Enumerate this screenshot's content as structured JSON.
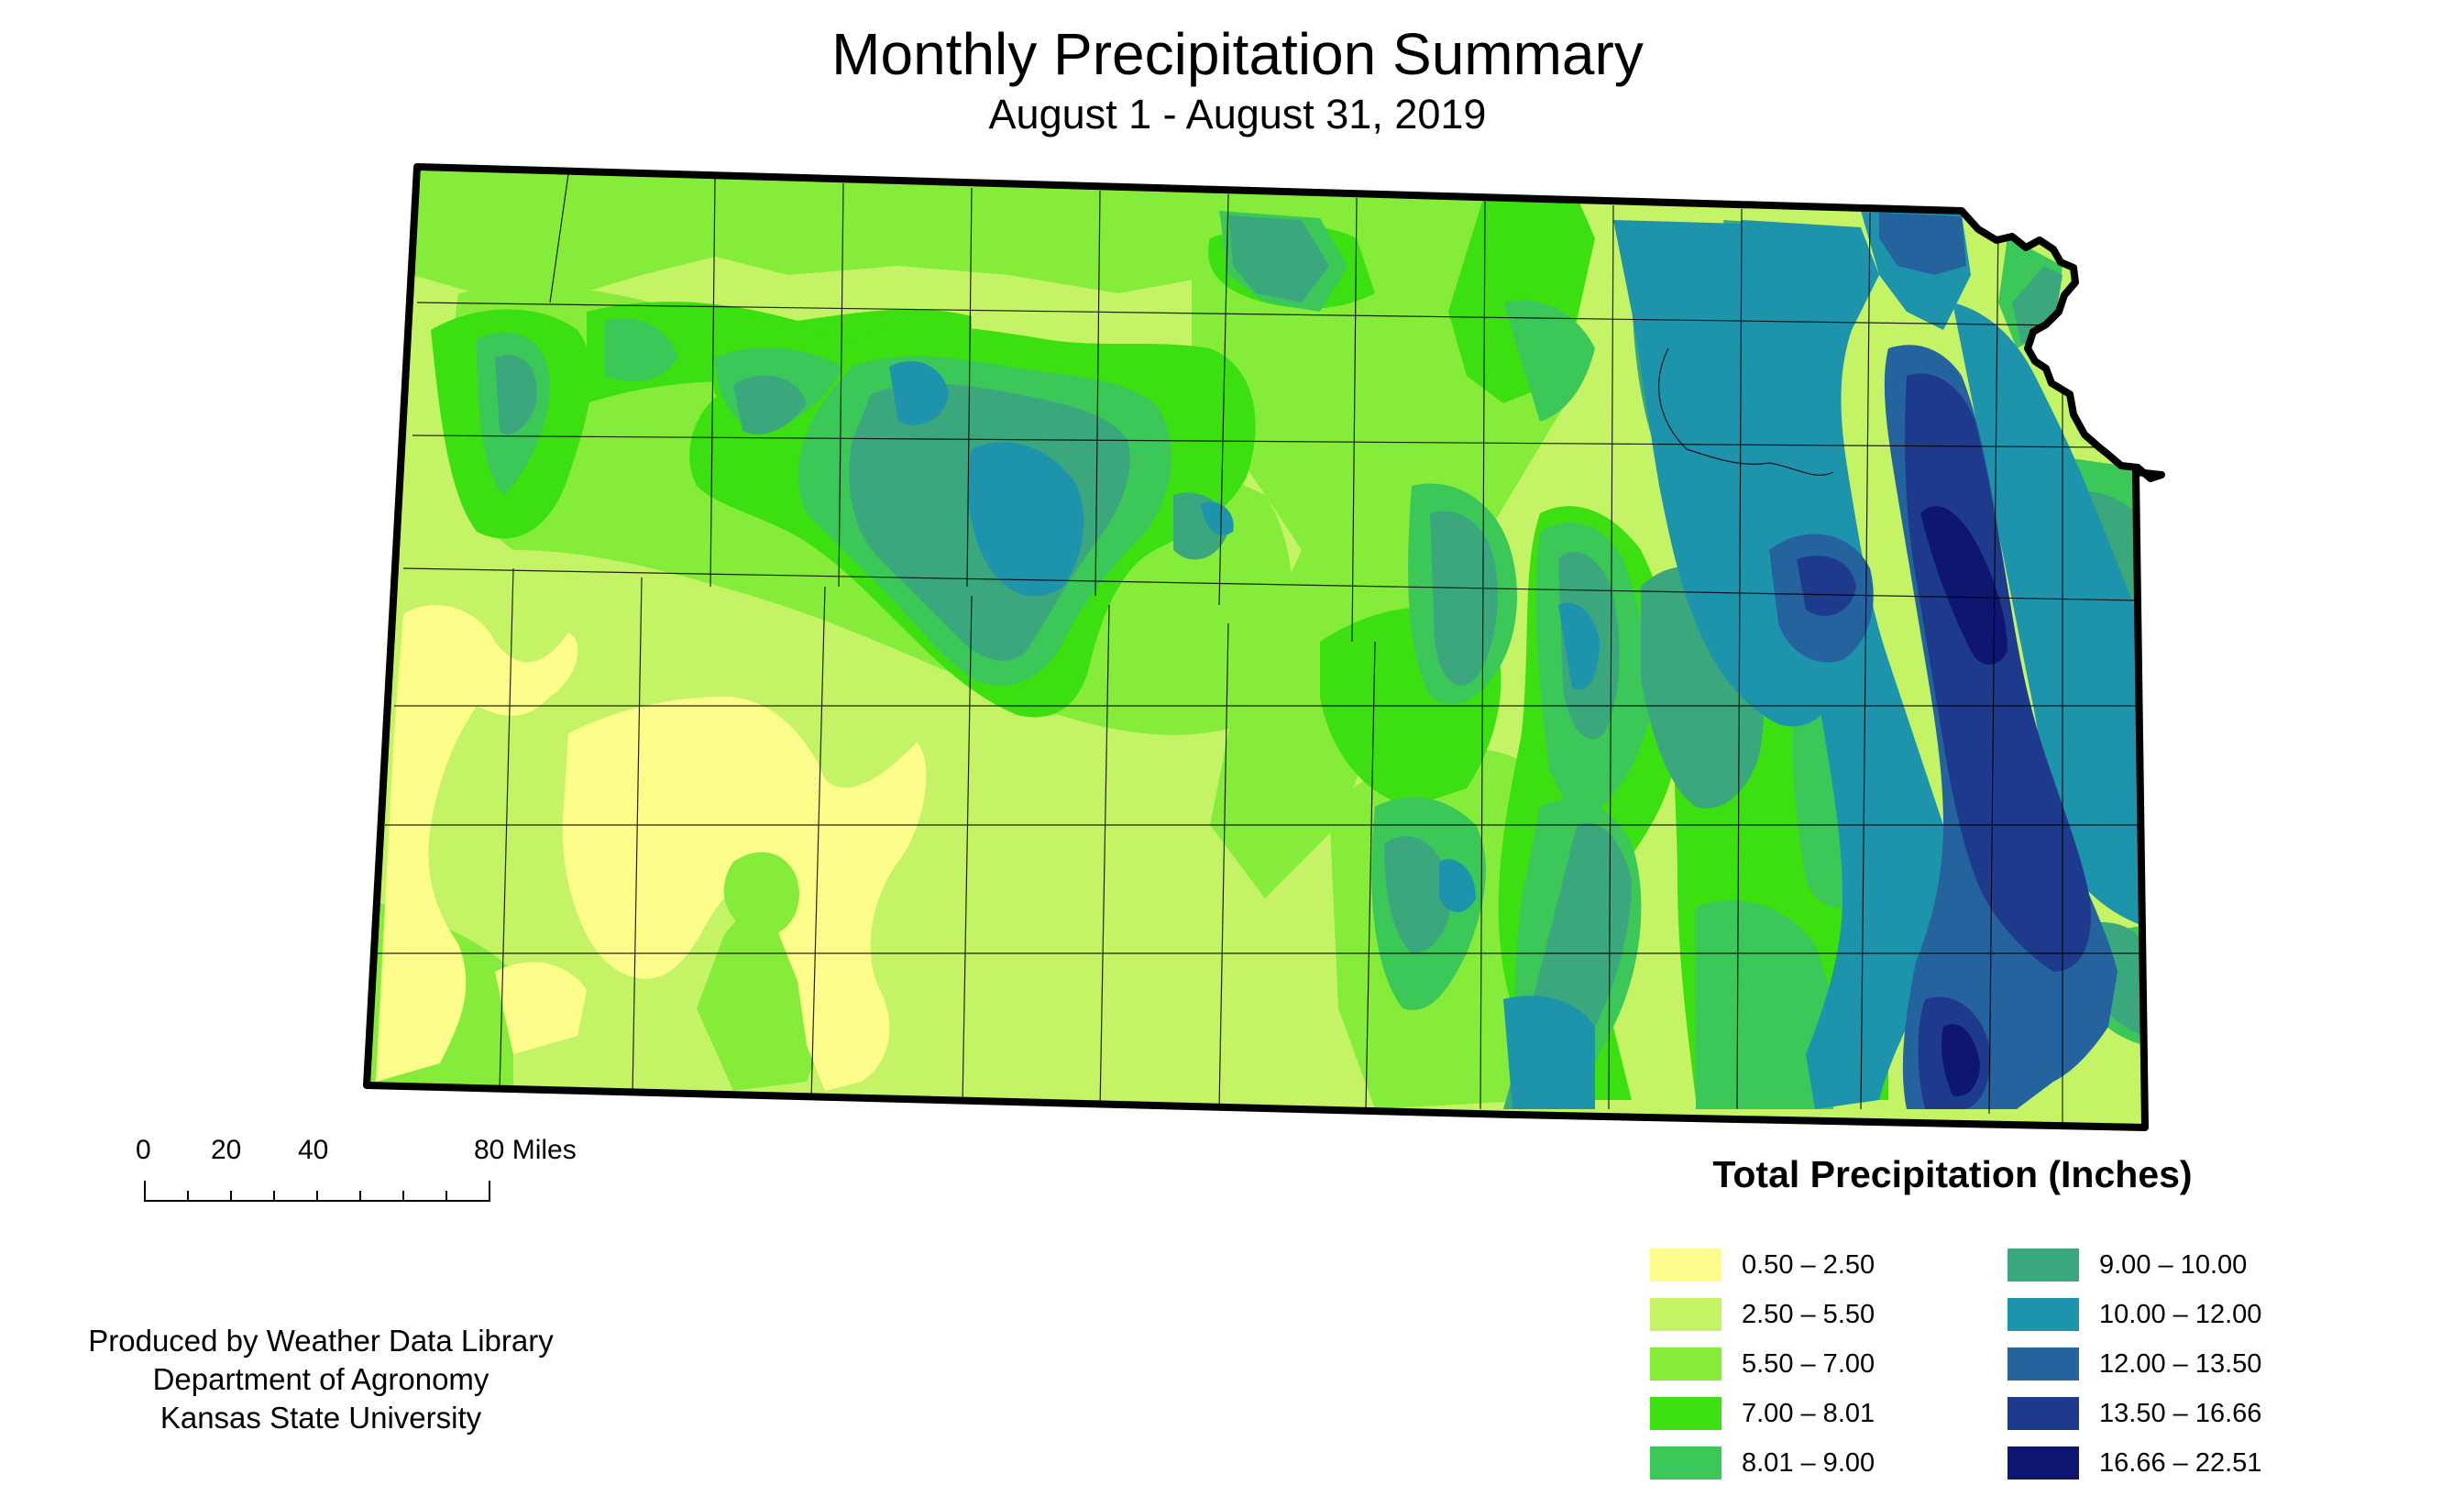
{
  "header": {
    "title": "Monthly Precipitation Summary",
    "subtitle": "August 1 - August 31, 2019"
  },
  "scale_bar": {
    "labels": [
      "0",
      "20",
      "40",
      "80 Miles"
    ]
  },
  "credits": {
    "line1": "Produced by Weather Data Library",
    "line2": "Department of Agronomy",
    "line3": "Kansas State University"
  },
  "legend": {
    "title": "Total Precipitation (Inches)",
    "classes": [
      {
        "label": "0.50 – 2.50",
        "color": "#fdfd8c"
      },
      {
        "label": "2.50 – 5.50",
        "color": "#c4f466"
      },
      {
        "label": "5.50 – 7.00",
        "color": "#86ec3a"
      },
      {
        "label": "7.00 – 8.01",
        "color": "#3cdf10"
      },
      {
        "label": "8.01 – 9.00",
        "color": "#3cc858"
      },
      {
        "label": "9.00 – 10.00",
        "color": "#3aa87c"
      },
      {
        "label": "10.00 – 12.00",
        "color": "#1e94ac"
      },
      {
        "label": "12.00 – 13.50",
        "color": "#24639e"
      },
      {
        "label": "13.50 – 16.66",
        "color": "#1e3a8c"
      },
      {
        "label": "16.66 – 22.51",
        "color": "#0e1670"
      }
    ]
  },
  "map": {
    "region": "Kansas",
    "outline_color": "#000000"
  }
}
